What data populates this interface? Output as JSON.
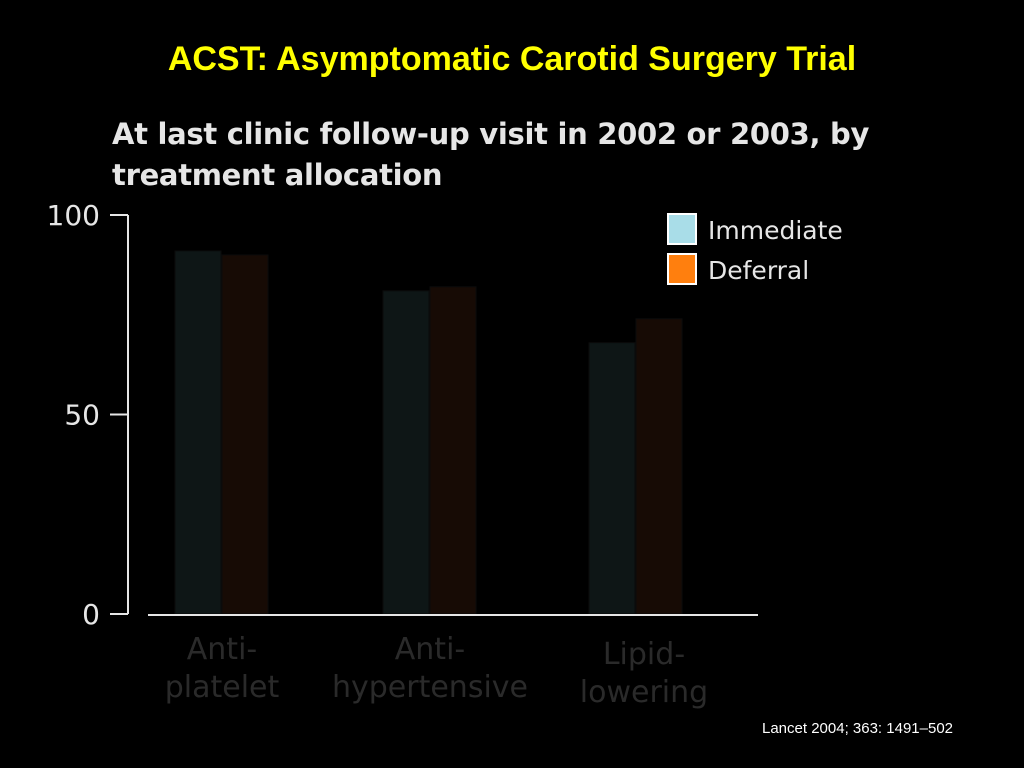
{
  "slide": {
    "title": "ACST: Asymptomatic Carotid Surgery Trial",
    "citation": "Lancet 2004; 363: 1491–502"
  },
  "colors": {
    "background": "#000000",
    "title": "#ffff00",
    "immediate": "#a9dde8",
    "deferral": "#ff7f0e",
    "immediate_bar": "#0e1616",
    "deferral_bar": "#170b05",
    "axis": "#e6e6e6",
    "category_label": "#2a2a2a"
  },
  "chart_data": {
    "type": "bar",
    "title": "At last clinic follow-up visit in 2002 or 2003, by treatment allocation",
    "xlabel": "",
    "ylabel": "",
    "ylim": [
      0,
      100
    ],
    "yticks": [
      "100",
      "50",
      "0"
    ],
    "categories": [
      "Anti-\nplatelet",
      "Anti-\nhypertensive",
      "Lipid-\nlowering"
    ],
    "series": [
      {
        "name": "Immediate",
        "values": [
          91,
          81,
          68
        ]
      },
      {
        "name": "Deferral",
        "values": [
          90,
          82,
          74
        ]
      }
    ],
    "legend": "top-right",
    "grid": false
  }
}
